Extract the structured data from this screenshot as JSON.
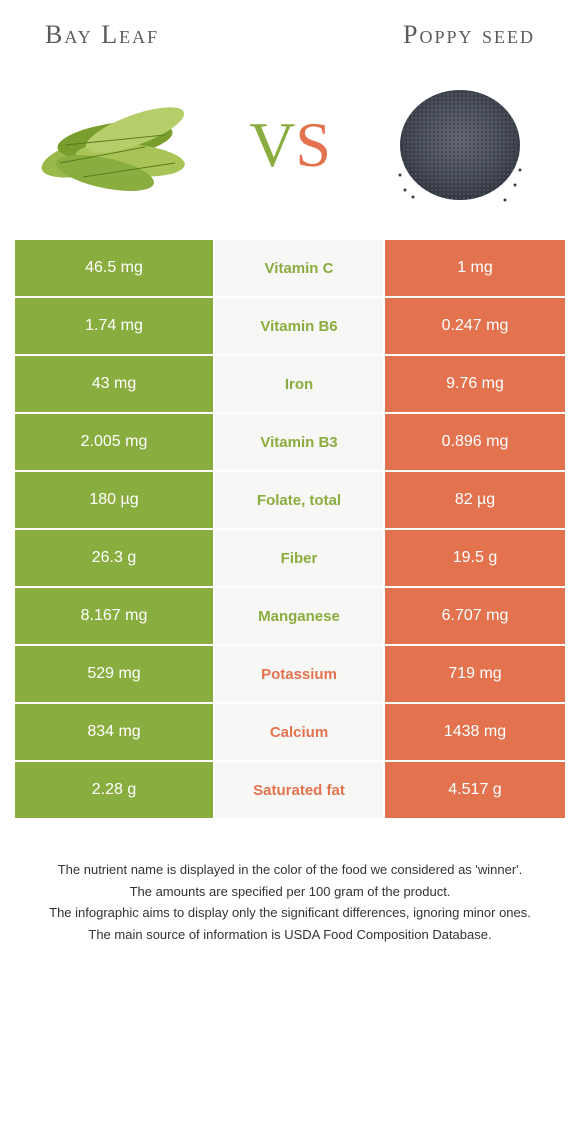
{
  "header": {
    "left_title": "Bay Leaf",
    "right_title": "Poppy seed",
    "vs_v": "V",
    "vs_s": "S"
  },
  "colors": {
    "green": "#8aad3f",
    "orange": "#e2734e",
    "mid_bg": "#f7f7f5"
  },
  "rows": [
    {
      "nutrient": "Vitamin C",
      "left": "46.5 mg",
      "right": "1 mg",
      "winner": "left"
    },
    {
      "nutrient": "Vitamin B6",
      "left": "1.74 mg",
      "right": "0.247 mg",
      "winner": "left"
    },
    {
      "nutrient": "Iron",
      "left": "43 mg",
      "right": "9.76 mg",
      "winner": "left"
    },
    {
      "nutrient": "Vitamin B3",
      "left": "2.005 mg",
      "right": "0.896 mg",
      "winner": "left"
    },
    {
      "nutrient": "Folate, total",
      "left": "180 µg",
      "right": "82 µg",
      "winner": "left"
    },
    {
      "nutrient": "Fiber",
      "left": "26.3 g",
      "right": "19.5 g",
      "winner": "left"
    },
    {
      "nutrient": "Manganese",
      "left": "8.167 mg",
      "right": "6.707 mg",
      "winner": "left"
    },
    {
      "nutrient": "Potassium",
      "left": "529 mg",
      "right": "719 mg",
      "winner": "right"
    },
    {
      "nutrient": "Calcium",
      "left": "834 mg",
      "right": "1438 mg",
      "winner": "right"
    },
    {
      "nutrient": "Saturated fat",
      "left": "2.28 g",
      "right": "4.517 g",
      "winner": "right"
    }
  ],
  "footnotes": [
    "The nutrient name is displayed in the color of the food we considered as 'winner'.",
    "The amounts are specified per 100 gram of the product.",
    "The infographic aims to display only the significant differences, ignoring minor ones.",
    "The main source of information is USDA Food Composition Database."
  ]
}
